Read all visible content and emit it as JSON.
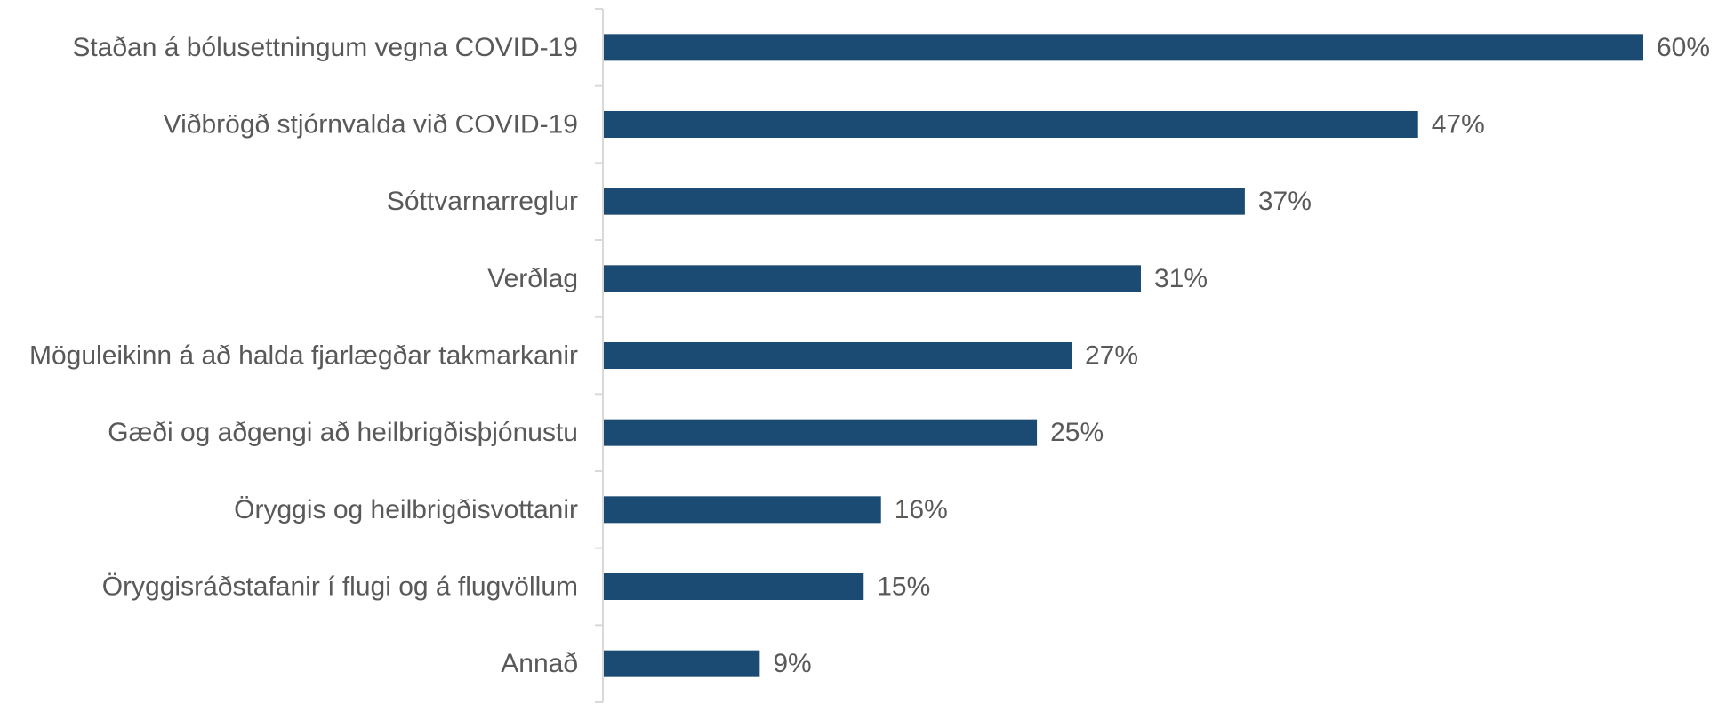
{
  "chart_data": {
    "type": "bar",
    "orientation": "horizontal",
    "title": "",
    "xlabel": "",
    "ylabel": "",
    "categories": [
      "Staðan á bólusettningum vegna COVID-19",
      "Viðbrögð stjórnvalda við COVID-19",
      "Sóttvarnarreglur",
      "Verðlag",
      "Möguleikinn á að halda fjarlægðar takmarkanir",
      "Gæði og aðgengi að heilbrigðisþjónustu",
      "Öryggis og heilbrigðisvottanir",
      "Öryggisráðstafanir í flugi og á flugvöllum",
      "Annað"
    ],
    "values": [
      60,
      47,
      37,
      31,
      27,
      25,
      16,
      15,
      9
    ],
    "value_labels": [
      "60%",
      "47%",
      "37%",
      "31%",
      "27%",
      "25%",
      "16%",
      "15%",
      "9%"
    ],
    "xlim": [
      0,
      60
    ],
    "grid": false,
    "legend": "none",
    "colors": {
      "bar": "#1b4a73",
      "axis": "#d9d9d9",
      "text": "#595959"
    }
  }
}
